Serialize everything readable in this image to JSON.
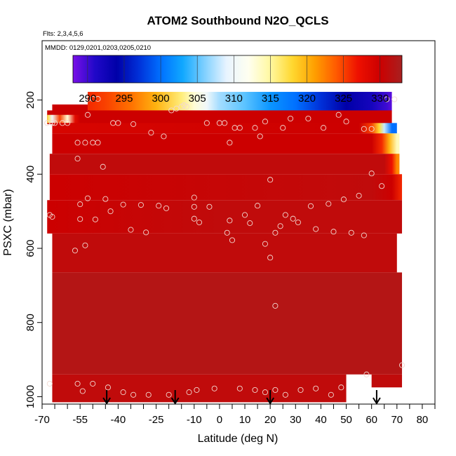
{
  "chart_data": {
    "type": "heatmap",
    "title": "ATOM2 Southbound N2O_QCLS",
    "flights_label": "Flts: 2,3,4,5,6",
    "dates_label": "MMDD: 0129,0201,0203,0205,0210",
    "xlabel": "Latitude (deg N)",
    "ylabel": "PSXC (mbar)",
    "xlim": [
      -70,
      85
    ],
    "ylim": [
      1020,
      40
    ],
    "y_reversed": true,
    "x_ticks": [
      -70,
      -65,
      -60,
      -55,
      -50,
      -45,
      -40,
      -35,
      -30,
      -25,
      -20,
      -15,
      -10,
      -5,
      0,
      5,
      10,
      15,
      20,
      25,
      30,
      35,
      40,
      45,
      50,
      55,
      60,
      65,
      70,
      75,
      80,
      85
    ],
    "x_tick_labels": [
      "-70",
      "-55",
      "-40",
      "-25",
      "-10",
      "0",
      "10",
      "20",
      "30",
      "40",
      "50",
      "60",
      "70",
      "80"
    ],
    "x_tick_label_values": [
      -70,
      -55,
      -40,
      -25,
      -10,
      0,
      10,
      20,
      30,
      40,
      50,
      60,
      70,
      80
    ],
    "y_ticks": [
      200,
      400,
      600,
      800,
      1000
    ],
    "y_tick_labels": [
      "200",
      "400",
      "600",
      "800",
      "1000"
    ],
    "colorbar": {
      "min": 288,
      "max": 333,
      "tick_values": [
        290,
        295,
        300,
        305,
        310,
        315,
        320,
        325,
        330
      ],
      "tick_labels": [
        "290",
        "295",
        "300",
        "305",
        "310",
        "315",
        "320",
        "325",
        "330"
      ],
      "colors": [
        "#7a10e8",
        "#2008c8",
        "#0000a8",
        "#0030d8",
        "#0070ff",
        "#10a8ff",
        "#80d0ff",
        "#e8f4ff",
        "#fffff0",
        "#fff8a0",
        "#ffd830",
        "#ffa000",
        "#ff5a00",
        "#ee1000",
        "#cc0000",
        "#a82020"
      ]
    },
    "rows": [
      {
        "p_top": 178,
        "p_bot": 230,
        "x_start": -52,
        "x_end": 68,
        "stops": [
          [
            -52,
            326
          ],
          [
            -45,
            325
          ],
          [
            -35,
            323
          ],
          [
            -25,
            320
          ],
          [
            -15,
            316
          ],
          [
            -10,
            313
          ],
          [
            -5,
            310
          ],
          [
            0,
            307
          ],
          [
            10,
            305
          ],
          [
            20,
            302
          ],
          [
            30,
            300
          ],
          [
            40,
            297
          ],
          [
            50,
            294
          ],
          [
            60,
            292
          ],
          [
            66,
            290
          ],
          [
            68,
            289
          ]
        ]
      },
      {
        "p_top": 212,
        "p_bot": 232,
        "x_start": -66,
        "x_end": -52,
        "stops": [
          [
            -66,
            330
          ],
          [
            -60,
            330
          ],
          [
            -55,
            330
          ],
          [
            -52,
            330
          ]
        ]
      },
      {
        "p_top": 228,
        "p_bot": 265,
        "x_start": -68,
        "x_end": 68,
        "stops": [
          [
            -68,
            330
          ],
          [
            0,
            330
          ],
          [
            68,
            330
          ]
        ]
      },
      {
        "p_top": 240,
        "p_bot": 262,
        "x_start": -68,
        "x_end": -55,
        "stops": [
          [
            -68,
            318
          ],
          [
            -66,
            310
          ],
          [
            -63,
            325
          ],
          [
            -60,
            313
          ],
          [
            -57,
            328
          ],
          [
            -55,
            330
          ]
        ]
      },
      {
        "p_top": 262,
        "p_bot": 290,
        "x_start": -66,
        "x_end": 70,
        "stops": [
          [
            -66,
            329
          ],
          [
            55,
            330
          ],
          [
            60,
            325
          ],
          [
            63,
            318
          ],
          [
            65,
            308
          ],
          [
            68,
            300
          ]
        ]
      },
      {
        "p_top": 290,
        "p_bot": 345,
        "x_start": -66,
        "x_end": 71,
        "stops": [
          [
            -66,
            330
          ],
          [
            60,
            330
          ],
          [
            64,
            326
          ],
          [
            67,
            320
          ],
          [
            70,
            314
          ]
        ]
      },
      {
        "p_top": 345,
        "p_bot": 400,
        "x_start": -67,
        "x_end": 71,
        "stops": [
          [
            -67,
            331
          ],
          [
            65,
            331
          ],
          [
            68,
            327
          ],
          [
            70,
            322
          ]
        ]
      },
      {
        "p_top": 400,
        "p_bot": 470,
        "x_start": -67,
        "x_end": 72,
        "stops": [
          [
            -67,
            330
          ],
          [
            60,
            331
          ],
          [
            68,
            330
          ],
          [
            72,
            326
          ]
        ]
      },
      {
        "p_top": 470,
        "p_bot": 560,
        "x_start": -68,
        "x_end": 72,
        "stops": [
          [
            -68,
            330
          ],
          [
            0,
            331
          ],
          [
            72,
            331
          ]
        ]
      },
      {
        "p_top": 560,
        "p_bot": 665,
        "x_start": -66,
        "x_end": 70,
        "stops": [
          [
            -66,
            331
          ],
          [
            0,
            331
          ],
          [
            70,
            331
          ]
        ]
      },
      {
        "p_top": 665,
        "p_bot": 940,
        "x_start": -66,
        "x_end": 72,
        "stops": [
          [
            -66,
            332
          ],
          [
            0,
            332
          ],
          [
            72,
            332
          ]
        ]
      },
      {
        "p_top": 940,
        "p_bot": 1015,
        "x_start": -66,
        "x_end": 50,
        "stops": [
          [
            -66,
            331
          ],
          [
            0,
            331
          ],
          [
            50,
            331
          ]
        ]
      },
      {
        "p_top": 940,
        "p_bot": 975,
        "x_start": 60,
        "x_end": 72,
        "stops": [
          [
            60,
            331
          ],
          [
            72,
            331
          ]
        ]
      }
    ],
    "sample_points": [
      [
        -52,
        197
      ],
      [
        -50,
        197
      ],
      [
        -48,
        197
      ],
      [
        -52,
        240
      ],
      [
        -60,
        262
      ],
      [
        -66,
        262
      ],
      [
        -68,
        262
      ],
      [
        -65,
        262
      ],
      [
        -62,
        262
      ],
      [
        -56,
        315
      ],
      [
        -53,
        315
      ],
      [
        -50,
        315
      ],
      [
        -48,
        315
      ],
      [
        -42,
        262
      ],
      [
        -40,
        262
      ],
      [
        -34,
        265
      ],
      [
        -27,
        288
      ],
      [
        -22,
        298
      ],
      [
        -19,
        228
      ],
      [
        -17,
        223
      ],
      [
        -15,
        218
      ],
      [
        -14,
        214
      ],
      [
        -13,
        218
      ],
      [
        -5,
        262
      ],
      [
        0,
        262
      ],
      [
        2,
        262
      ],
      [
        4,
        315
      ],
      [
        6,
        275
      ],
      [
        8,
        275
      ],
      [
        14,
        275
      ],
      [
        16,
        298
      ],
      [
        18,
        258
      ],
      [
        25,
        275
      ],
      [
        28,
        250
      ],
      [
        35,
        250
      ],
      [
        41,
        275
      ],
      [
        47,
        240
      ],
      [
        50,
        258
      ],
      [
        57,
        278
      ],
      [
        60,
        278
      ],
      [
        66,
        198
      ],
      [
        69,
        198
      ],
      [
        -56,
        358
      ],
      [
        -46,
        380
      ],
      [
        -38,
        482
      ],
      [
        -31,
        483
      ],
      [
        -24,
        485
      ],
      [
        -21,
        492
      ],
      [
        -10,
        463
      ],
      [
        -10,
        488
      ],
      [
        -10,
        520
      ],
      [
        -8,
        530
      ],
      [
        -4,
        488
      ],
      [
        3,
        558
      ],
      [
        4,
        525
      ],
      [
        5,
        578
      ],
      [
        10,
        510
      ],
      [
        12,
        532
      ],
      [
        15,
        485
      ],
      [
        18,
        588
      ],
      [
        20,
        415
      ],
      [
        22,
        558
      ],
      [
        24,
        540
      ],
      [
        26,
        510
      ],
      [
        29,
        520
      ],
      [
        31,
        530
      ],
      [
        36,
        486
      ],
      [
        38,
        548
      ],
      [
        43,
        480
      ],
      [
        45,
        555
      ],
      [
        49,
        468
      ],
      [
        52,
        558
      ],
      [
        55,
        458
      ],
      [
        57,
        565
      ],
      [
        60,
        398
      ],
      [
        64,
        432
      ],
      [
        -67,
        510
      ],
      [
        -66,
        515
      ],
      [
        -55,
        481
      ],
      [
        -55,
        521
      ],
      [
        -52,
        465
      ],
      [
        -49,
        522
      ],
      [
        -45,
        467
      ],
      [
        -43,
        500
      ],
      [
        -35,
        550
      ],
      [
        -29,
        557
      ],
      [
        -57,
        606
      ],
      [
        -53,
        592
      ],
      [
        20,
        625
      ],
      [
        22,
        755
      ],
      [
        -67,
        965
      ],
      [
        -56,
        965
      ],
      [
        -54,
        985
      ],
      [
        -50,
        965
      ],
      [
        -44,
        975
      ],
      [
        -38,
        988
      ],
      [
        -34,
        995
      ],
      [
        -28,
        995
      ],
      [
        -20,
        995
      ],
      [
        -12,
        988
      ],
      [
        -9,
        982
      ],
      [
        -2,
        978
      ],
      [
        8,
        978
      ],
      [
        14,
        982
      ],
      [
        18,
        988
      ],
      [
        22,
        982
      ],
      [
        26,
        995
      ],
      [
        32,
        982
      ],
      [
        38,
        978
      ],
      [
        44,
        995
      ],
      [
        48,
        975
      ],
      [
        58,
        940
      ],
      [
        72,
        915
      ]
    ],
    "arrows_lat": [
      -44.5,
      -17.5,
      20,
      62
    ]
  }
}
